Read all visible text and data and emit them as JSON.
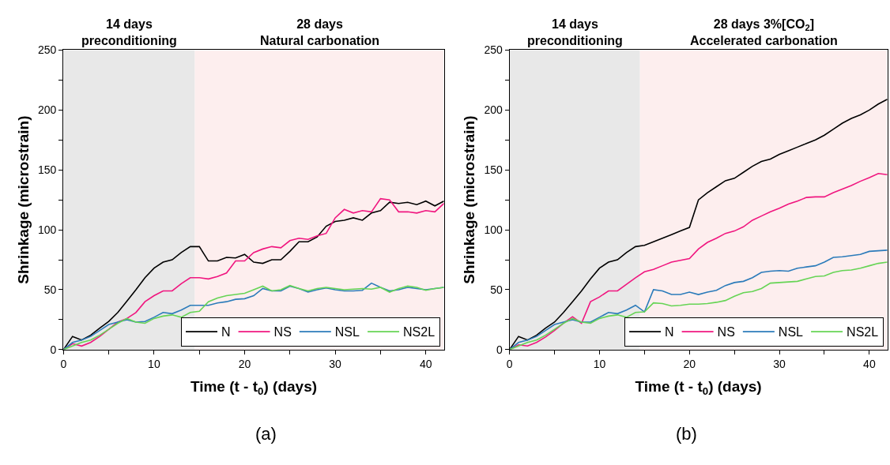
{
  "chart_data": [
    {
      "type": "line",
      "xlabel": "Time (t - t$_{0}$) (days)",
      "ylabel": "Shrinkage (microstrain)",
      "xlim": [
        0,
        42
      ],
      "ylim": [
        0,
        250
      ],
      "xticks": [
        0,
        {
          "value": 5,
          "label": null
        },
        10,
        {
          "value": 15,
          "label": null
        },
        20,
        {
          "value": 25,
          "label": null
        },
        30,
        {
          "value": 35,
          "label": null
        },
        40
      ],
      "yticks": [
        0,
        {
          "value": 25,
          "label": null
        },
        50,
        {
          "value": 75,
          "label": null
        },
        100,
        {
          "value": 125,
          "label": null
        },
        150,
        {
          "value": 175,
          "label": null
        },
        200,
        {
          "value": 225,
          "label": null
        },
        250
      ],
      "grid": false,
      "legend": "bottom right",
      "bands": [
        {
          "axis": "x",
          "from": 0,
          "to": 14.5,
          "label": "14 days\npreconditioning",
          "color": "#e8e8e8"
        },
        {
          "axis": "x",
          "from": 14.5,
          "to": 42,
          "label": "28 days\nNatural carbonation",
          "color": "#fdeeee"
        }
      ],
      "annotations": [
        "(a)"
      ],
      "x": [
        0,
        1,
        2,
        3,
        4,
        5,
        6,
        7,
        8,
        9,
        10,
        11,
        12,
        13,
        14,
        15,
        16,
        17,
        18,
        19,
        20,
        21,
        22,
        23,
        24,
        25,
        26,
        27,
        28,
        29,
        30,
        31,
        32,
        33,
        34,
        35,
        36,
        37,
        38,
        39,
        40,
        41,
        42
      ],
      "series": [
        {
          "name": "N",
          "color": "#000000",
          "values": [
            0,
            11,
            8,
            12,
            18,
            23.5,
            31,
            40.5,
            50,
            60,
            68,
            73,
            75,
            81,
            86,
            86,
            74,
            74,
            77,
            76.5,
            79.5,
            73,
            72,
            75,
            75,
            82,
            90,
            90,
            94,
            103,
            107,
            108,
            110,
            108,
            114,
            116,
            123,
            122,
            123,
            121,
            124,
            120,
            124
          ]
        },
        {
          "name": "NS",
          "color": "#f0167f",
          "values": [
            0,
            5,
            3,
            6,
            11,
            17,
            23,
            26,
            31,
            40,
            45,
            49,
            49,
            55,
            60,
            60,
            59,
            61,
            64,
            74,
            74,
            81,
            84,
            86,
            85,
            91,
            93,
            92,
            95,
            97,
            110,
            117,
            114,
            116,
            115,
            126,
            125,
            115,
            115,
            114,
            116,
            115,
            122
          ]
        },
        {
          "name": "NSL",
          "color": "#2b7bba",
          "values": [
            0,
            6,
            8,
            11,
            16,
            21,
            23,
            25,
            23,
            23.5,
            27,
            31,
            30,
            33,
            37,
            37,
            37,
            39,
            40,
            42,
            42.5,
            45,
            51,
            49,
            49,
            53,
            51,
            48,
            50,
            51.5,
            50,
            49,
            49,
            49.5,
            55.5,
            52,
            49,
            50,
            52,
            51,
            50,
            51,
            52
          ]
        },
        {
          "name": "NS2L",
          "color": "#66d455",
          "values": [
            0,
            3,
            6,
            8,
            12,
            17,
            22,
            26,
            23,
            22,
            26,
            28,
            29,
            27,
            31,
            32,
            40,
            43,
            45,
            46,
            47,
            50,
            53,
            49,
            50,
            53.5,
            51,
            49,
            51,
            52,
            51,
            50,
            50.5,
            51,
            50.5,
            52,
            48,
            51,
            53,
            52,
            49.5,
            51,
            52
          ]
        }
      ]
    },
    {
      "type": "line",
      "xlabel": "Time (t - t$_{0}$) (days)",
      "ylabel": "Shrinkage (microstrain)",
      "xlim": [
        0,
        42
      ],
      "ylim": [
        0,
        250
      ],
      "xticks": [
        0,
        {
          "value": 5,
          "label": null
        },
        10,
        {
          "value": 15,
          "label": null
        },
        20,
        {
          "value": 25,
          "label": null
        },
        30,
        {
          "value": 35,
          "label": null
        },
        40
      ],
      "yticks": [
        0,
        {
          "value": 25,
          "label": null
        },
        50,
        {
          "value": 75,
          "label": null
        },
        100,
        {
          "value": 125,
          "label": null
        },
        150,
        {
          "value": 175,
          "label": null
        },
        200,
        {
          "value": 225,
          "label": null
        },
        250
      ],
      "grid": false,
      "legend": "bottom right",
      "bands": [
        {
          "axis": "x",
          "from": 0,
          "to": 14.5,
          "label": "14 days\npreconditioning",
          "color": "#e8e8e8"
        },
        {
          "axis": "x",
          "from": 14.5,
          "to": 42,
          "label": "28 days 3%[CO$_{2}$]\nAccelerated carbonation",
          "color": "#fdeeee"
        }
      ],
      "annotations": [
        "(b)"
      ],
      "x": [
        0,
        1,
        2,
        3,
        4,
        5,
        6,
        7,
        8,
        9,
        10,
        11,
        12,
        13,
        14,
        15,
        16,
        17,
        18,
        19,
        20,
        21,
        22,
        23,
        24,
        25,
        26,
        27,
        28,
        29,
        30,
        31,
        32,
        33,
        34,
        35,
        36,
        37,
        38,
        39,
        40,
        41,
        42
      ],
      "series": [
        {
          "name": "N",
          "color": "#000000",
          "values": [
            0,
            11,
            8,
            12,
            18,
            23,
            31,
            40,
            49,
            59,
            68,
            73,
            75,
            81,
            86,
            87,
            90,
            93,
            96,
            99,
            102,
            125,
            131,
            136,
            141,
            143,
            148,
            153,
            157,
            159,
            163,
            166,
            169,
            172,
            175,
            179,
            184,
            189,
            193,
            196,
            200,
            205,
            209
          ]
        },
        {
          "name": "NS",
          "color": "#f0167f",
          "values": [
            0,
            4,
            3,
            6,
            10.5,
            16,
            22,
            27.5,
            22,
            40,
            44,
            49,
            49,
            54.5,
            60,
            65,
            67,
            70,
            73,
            74.5,
            76,
            84,
            89.5,
            93,
            97,
            99,
            102.5,
            108,
            111.5,
            115,
            118,
            121.5,
            124,
            127,
            127.5,
            127.5,
            131,
            134,
            137,
            140.5,
            143.5,
            147,
            146
          ]
        },
        {
          "name": "NSL",
          "color": "#2b7bba",
          "values": [
            0,
            6,
            8,
            11,
            16,
            21,
            23,
            25,
            23,
            23,
            27,
            31,
            30,
            33,
            37,
            31.5,
            50,
            49,
            46,
            46,
            48,
            46,
            48,
            49.5,
            53.5,
            56,
            57,
            60,
            64.5,
            65.5,
            66,
            65.5,
            68,
            69,
            70,
            73,
            77,
            77.5,
            78.5,
            79.5,
            82,
            82.5,
            83
          ]
        },
        {
          "name": "NS2L",
          "color": "#66d455",
          "values": [
            0,
            3,
            6,
            8,
            12,
            17,
            22,
            26,
            23,
            22,
            26,
            28,
            29,
            27,
            31,
            31.5,
            39,
            38.5,
            36.5,
            37,
            38,
            38,
            38.5,
            39.5,
            41,
            44.5,
            47.5,
            48.5,
            51,
            55.5,
            56,
            56.5,
            57,
            59,
            61,
            61.5,
            64.5,
            66,
            66.5,
            68,
            70,
            72,
            73
          ]
        }
      ]
    }
  ]
}
